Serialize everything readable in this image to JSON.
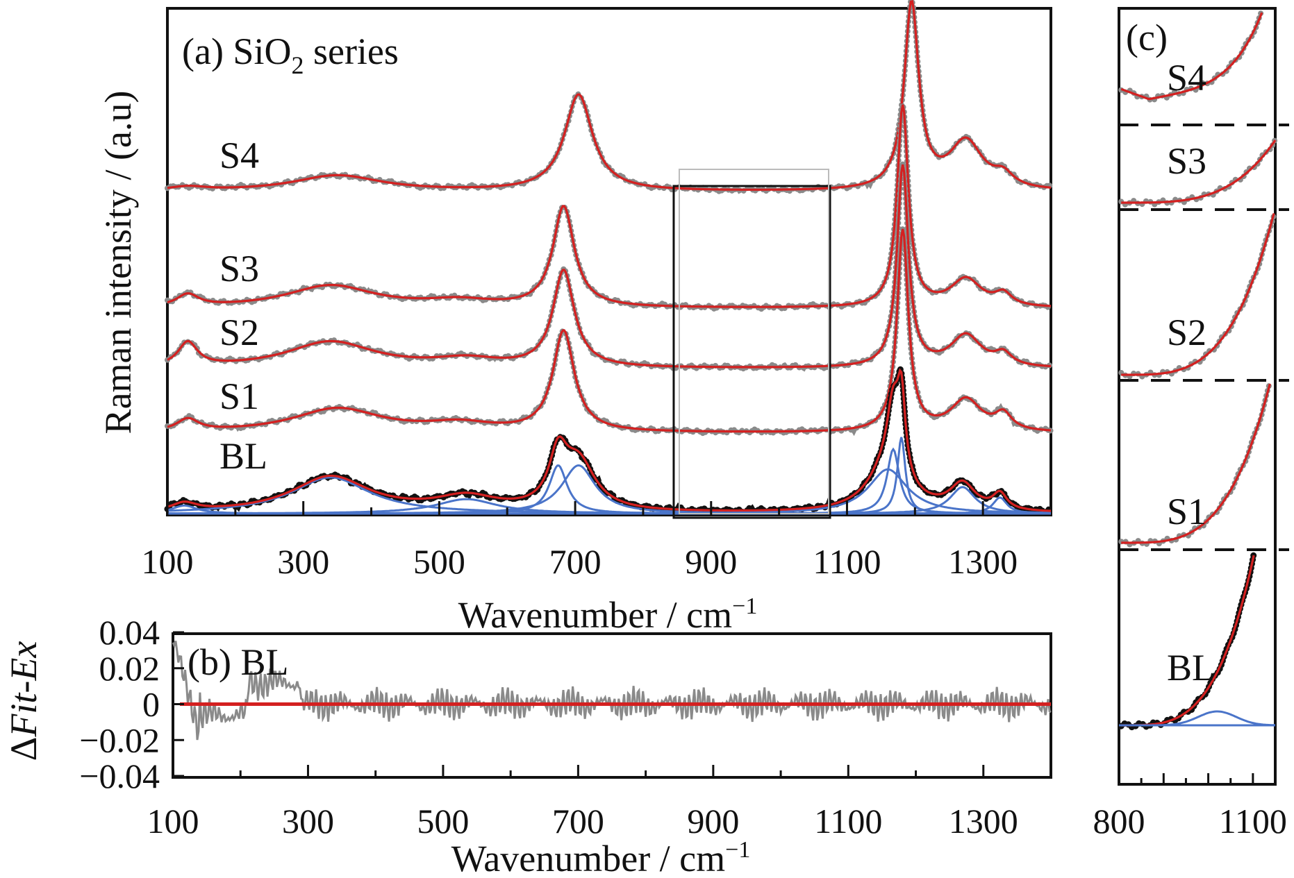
{
  "chart_data": [
    {
      "panel": "a",
      "type": "line",
      "panel_label": "(a) SiO",
      "panel_label_sub": "2",
      "panel_label_suffix": " series",
      "xlabel": "Wavenumber / cm",
      "xlabel_sup": "−1",
      "ylabel": "Raman intensity / (a.u)",
      "xlim": [
        100,
        1400
      ],
      "xticks": [
        100,
        300,
        500,
        700,
        900,
        1100,
        1300
      ],
      "xticks_minor": [
        200,
        400,
        600,
        800,
        1000,
        1200
      ],
      "ylim": [
        0,
        6.3
      ],
      "grid": false,
      "series": [
        {
          "name": "S4",
          "offset": 4.0,
          "bg": [
            0.35,
            0.0,
            0.05
          ],
          "peaks": [
            [
              130,
              70,
              0.05
            ],
            [
              350,
              160,
              0.2
            ],
            [
              705,
              50,
              1.2
            ],
            [
              1195,
              26,
              2.3
            ],
            [
              1275,
              60,
              0.6
            ],
            [
              1330,
              35,
              0.15
            ]
          ],
          "fit_color": "#d42020"
        },
        {
          "name": "S3",
          "offset": 2.55,
          "bg": [
            0.0,
            0.0,
            0.0
          ],
          "peaks": [
            [
              130,
              40,
              0.15
            ],
            [
              340,
              160,
              0.28
            ],
            [
              530,
              120,
              0.08
            ],
            [
              683,
              38,
              1.25
            ],
            [
              1182,
              20,
              2.5
            ],
            [
              1275,
              55,
              0.35
            ],
            [
              1330,
              30,
              0.15
            ]
          ],
          "fit_color": "#d42020"
        },
        {
          "name": "S2",
          "offset": 1.8,
          "bg": [
            0.0,
            0.0,
            0.0
          ],
          "peaks": [
            [
              130,
              35,
              0.3
            ],
            [
              340,
              160,
              0.33
            ],
            [
              540,
              120,
              0.1
            ],
            [
              683,
              38,
              1.2
            ],
            [
              1182,
              20,
              2.5
            ],
            [
              1275,
              55,
              0.4
            ],
            [
              1330,
              30,
              0.15
            ]
          ],
          "fit_color": "#d42020"
        },
        {
          "name": "S1",
          "offset": 1.0,
          "bg": [
            0.0,
            0.0,
            0.0
          ],
          "peaks": [
            [
              130,
              40,
              0.15
            ],
            [
              350,
              160,
              0.3
            ],
            [
              530,
              120,
              0.1
            ],
            [
              683,
              38,
              1.25
            ],
            [
              1182,
              20,
              2.5
            ],
            [
              1275,
              55,
              0.4
            ],
            [
              1330,
              30,
              0.2
            ]
          ],
          "fit_color": "#d42020"
        },
        {
          "name": "BL",
          "offset": 0.0,
          "bg": [
            0.0,
            0.0,
            0.0
          ],
          "peaks": [
            [
              125,
              45,
              0.1
            ],
            [
              340,
              140,
              0.45
            ],
            [
              540,
              110,
              0.18
            ],
            [
              675,
              32,
              0.6
            ],
            [
              705,
              60,
              0.6
            ],
            [
              1160,
              70,
              0.55
            ],
            [
              1168,
              22,
              0.8
            ],
            [
              1180,
              14,
              0.95
            ],
            [
              1270,
              45,
              0.33
            ],
            [
              1325,
              25,
              0.2
            ]
          ],
          "fit_color": "#d42020",
          "components_color": "#4a74c9"
        }
      ],
      "inset_box": {
        "x": [
          845,
          1075
        ]
      },
      "annotations": [
        "S4",
        "S3",
        "S2",
        "S1",
        "BL"
      ]
    },
    {
      "panel": "b",
      "type": "line",
      "panel_label": "(b) BL",
      "xlabel": "Wavenumber / cm",
      "xlabel_sup": "−1",
      "ylabel_prefix": "Δ",
      "ylabel_italic_1": "Fit",
      "ylabel_mid": "-",
      "ylabel_italic_2": "Ex",
      "xlim": [
        100,
        1400
      ],
      "ylim": [
        -0.04,
        0.04
      ],
      "yticks": [
        "0.04",
        "0.02",
        "0",
        "−0.02",
        "−0.04"
      ],
      "ytick_values": [
        0.04,
        0.02,
        0,
        -0.02,
        -0.04
      ],
      "xticks": [
        100,
        300,
        500,
        700,
        900,
        1100,
        1300
      ],
      "zero_line_color": "#d42020",
      "residual_color": "#8a8a8a"
    },
    {
      "panel": "c",
      "type": "line",
      "panel_label": "(c)",
      "xlim": [
        800,
        1150
      ],
      "xticks": [
        800,
        1100
      ],
      "annotations": [
        "S4",
        "S3",
        "S2",
        "S1",
        "BL"
      ]
    }
  ]
}
